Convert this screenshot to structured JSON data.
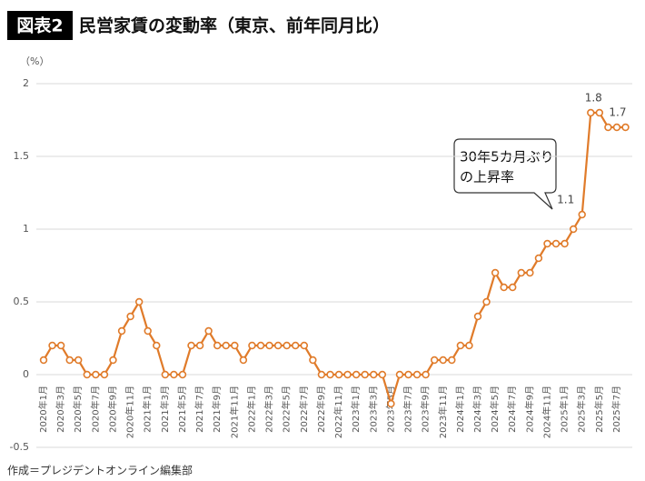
{
  "chart_data": {
    "type": "line",
    "badge": "図表2",
    "title": "民営家賃の変動率（東京、前年同月比）",
    "y_unit": "（%）",
    "source": "作成＝プレジデントオンライン編集部",
    "annotation": [
      "30年5カ月ぶり",
      "の上昇率"
    ],
    "categories": [
      "2020年1月",
      null,
      "2020年3月",
      null,
      "2020年5月",
      null,
      "2020年7月",
      null,
      "2020年9月",
      null,
      "2020年11月",
      null,
      "2021年1月",
      null,
      "2021年3月",
      null,
      "2021年5月",
      null,
      "2021年7月",
      null,
      "2021年9月",
      null,
      "2021年11月",
      null,
      "2022年1月",
      null,
      "2022年3月",
      null,
      "2022年5月",
      null,
      "2022年7月",
      null,
      "2022年9月",
      null,
      "2022年11月",
      null,
      "2023年1月",
      null,
      "2023年3月",
      null,
      "2023年5月",
      null,
      "2023年7月",
      null,
      "2023年9月",
      null,
      "2023年11月",
      null,
      "2024年1月",
      null,
      "2024年3月",
      null,
      "2024年5月",
      null,
      "2024年7月",
      null,
      "2024年9月",
      null,
      "2024年11月",
      null,
      "2025年1月",
      null,
      "2025年3月",
      null,
      "2025年5月",
      null,
      "2025年7月",
      null
    ],
    "series": [
      {
        "name": "民営家賃",
        "color": "#e07b2a",
        "values": [
          0.1,
          0.2,
          0.2,
          0.1,
          0.1,
          0,
          0,
          0,
          0.1,
          0.3,
          0.4,
          0.5,
          0.3,
          0.2,
          0,
          0,
          0,
          0.2,
          0.2,
          0.3,
          0.2,
          0.2,
          0.2,
          0.1,
          0.2,
          0.2,
          0.2,
          0.2,
          0.2,
          0.2,
          0.2,
          0.1,
          0,
          0,
          0,
          0,
          0,
          0,
          0,
          0,
          -0.2,
          0,
          0,
          0,
          0,
          0.1,
          0.1,
          0.1,
          0.2,
          0.2,
          0.4,
          0.5,
          0.7,
          0.6,
          0.6,
          0.7,
          0.7,
          0.8,
          0.9,
          0.9,
          0.9,
          1.0,
          1.1,
          1.8,
          1.8,
          1.7,
          1.7,
          1.7
        ],
        "value_labels": [
          null,
          null,
          null,
          null,
          null,
          null,
          null,
          null,
          null,
          null,
          null,
          null,
          null,
          null,
          null,
          null,
          null,
          null,
          null,
          null,
          null,
          null,
          null,
          null,
          null,
          null,
          null,
          null,
          null,
          null,
          null,
          null,
          null,
          null,
          null,
          null,
          null,
          null,
          null,
          null,
          null,
          null,
          null,
          null,
          null,
          null,
          null,
          null,
          null,
          null,
          null,
          null,
          null,
          null,
          null,
          null,
          null,
          null,
          null,
          null,
          null,
          null,
          "1.1",
          "1.8",
          null,
          null,
          "1.7",
          null
        ]
      }
    ],
    "ylim": [
      -0.5,
      2
    ],
    "yticks": [
      -0.5,
      0,
      0.5,
      1,
      1.5,
      2
    ],
    "grid": true
  }
}
